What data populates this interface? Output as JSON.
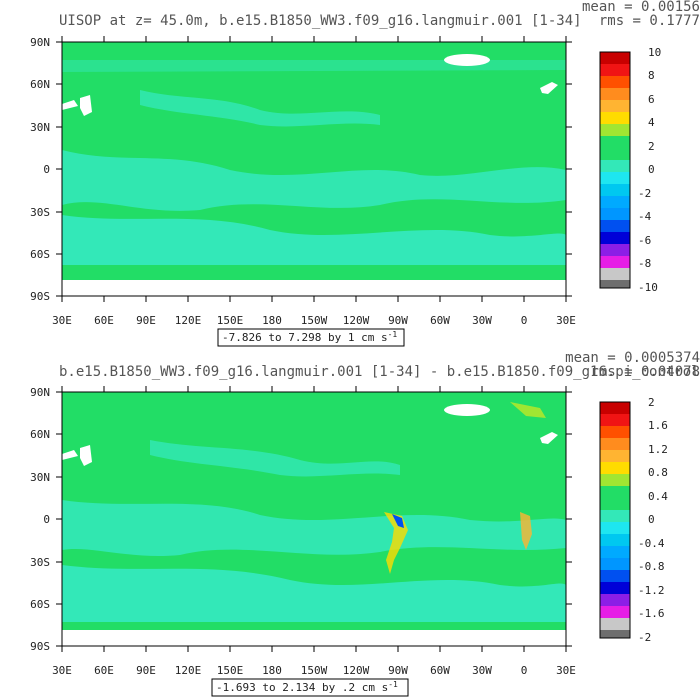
{
  "chart_data": [
    {
      "type": "heatmap",
      "title": "UISOP at z=  45.0m, b.e15.B1850_WW3.f09_g16.langmuir.001 [1-34]",
      "mean_label": "mean = 0.00156",
      "rms_label": "rms = 0.1777",
      "range_label": "-7.826 to 7.298 by 1 cm s",
      "range_unit_exp": "-1",
      "xticks": [
        "30E",
        "60E",
        "90E",
        "120E",
        "150E",
        "180",
        "150W",
        "120W",
        "90W",
        "60W",
        "30W",
        "0",
        "30E"
      ],
      "yticks": [
        "90N",
        "60N",
        "30N",
        "0",
        "30S",
        "60S",
        "90S"
      ],
      "xlim": [
        30,
        390
      ],
      "ylim": [
        -90,
        90
      ],
      "colorbar_labels": [
        "10",
        "8",
        "6",
        "4",
        "2",
        "0",
        "-2",
        "-4",
        "-6",
        "-8",
        "-10"
      ],
      "colors": {
        "field": "#22dd66",
        "negative": "#33e8b8",
        "mask": "#ffffff"
      }
    },
    {
      "type": "heatmap",
      "title": "b.e15.B1850_WW3.f09_g16.langmuir.001 [1-34] - b.e15.B1850.f09_g16.pi_control.all.66",
      "mean_label": "mean = 0.0005374",
      "rms_label": "rms = 0.04078",
      "range_label": "-1.693 to 2.134 by .2 cm s",
      "range_unit_exp": "-1",
      "xticks": [
        "30E",
        "60E",
        "90E",
        "120E",
        "150E",
        "180",
        "150W",
        "120W",
        "90W",
        "60W",
        "30W",
        "0",
        "30E"
      ],
      "yticks": [
        "90N",
        "60N",
        "30N",
        "0",
        "30S",
        "60S",
        "90S"
      ],
      "xlim": [
        30,
        390
      ],
      "ylim": [
        -90,
        90
      ],
      "colorbar_labels": [
        "2",
        "1.6",
        "1.2",
        "0.8",
        "0.4",
        "0",
        "-0.4",
        "-0.8",
        "-1.2",
        "-1.6",
        "-2"
      ],
      "colors": {
        "field": "#22dd66",
        "negative": "#33e8b8",
        "mask": "#ffffff"
      }
    }
  ],
  "colorbar_colors": [
    "#c80000",
    "#f01414",
    "#ff5000",
    "#ff8c1e",
    "#ffb432",
    "#ffdc00",
    "#a0e632",
    "#22dd66",
    "#33e8b8",
    "#1ee6f0",
    "#00c8f0",
    "#0096ff",
    "#0050f0",
    "#0000d8",
    "#8c1ee6",
    "#e61ee6",
    "#c8c8c8",
    "#6e6e6e"
  ]
}
